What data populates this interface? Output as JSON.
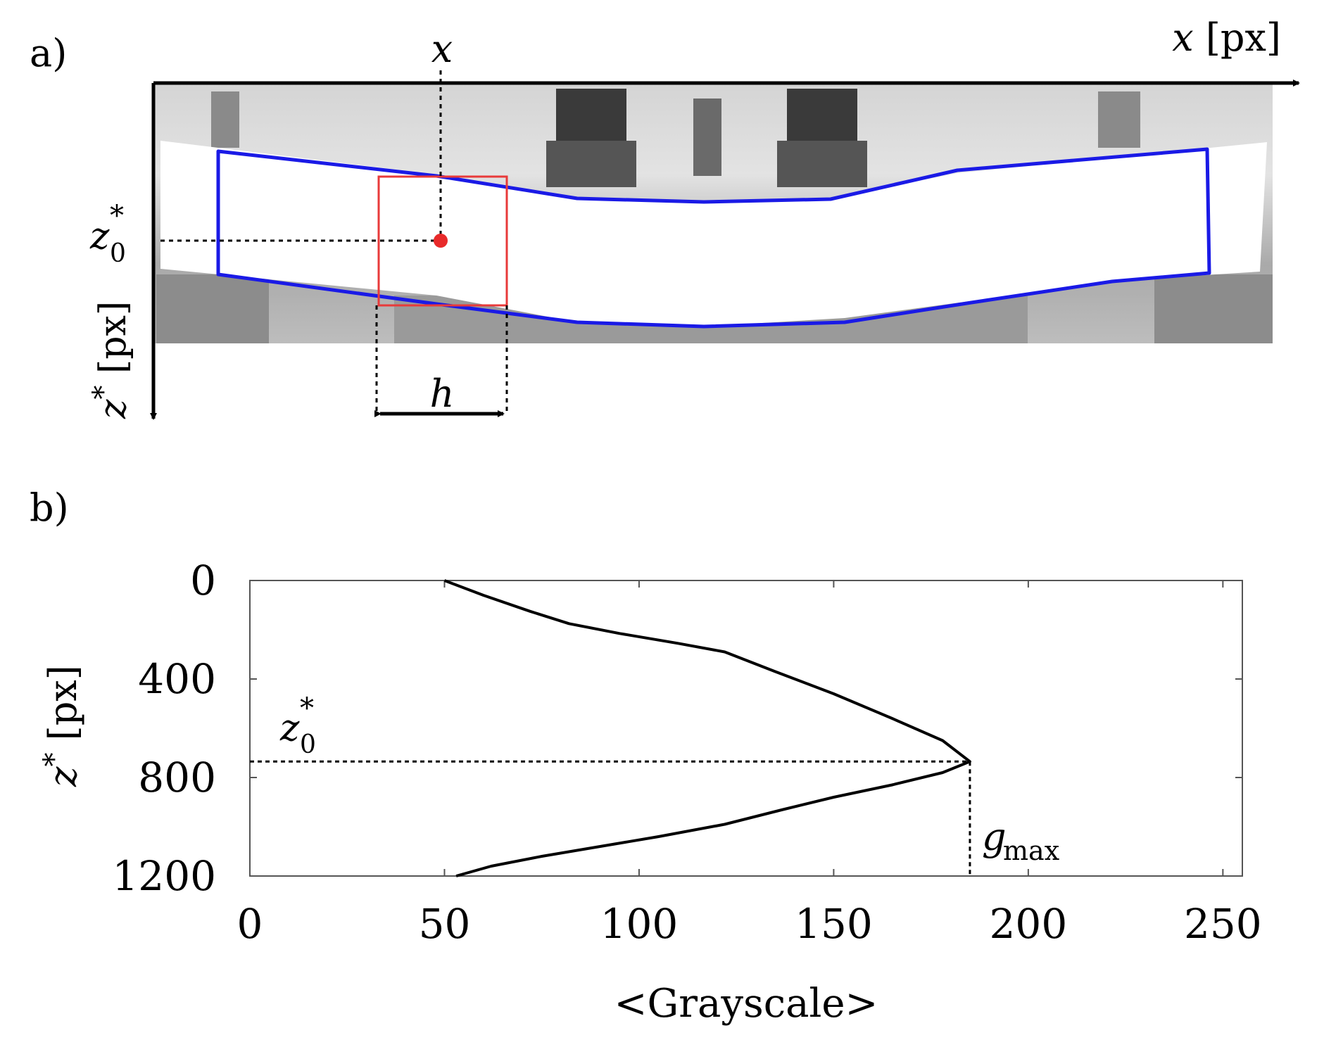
{
  "panel_a": {
    "label": "a)",
    "x_axis_label_italic": "x",
    "x_axis_label_unit": "[px]",
    "z_axis_label_base": "z",
    "z_axis_label_star": "*",
    "z_axis_label_unit": "[px]",
    "marker_x_label": "x",
    "marker_z_base": "z",
    "marker_z_sub": "0",
    "marker_z_sup": "*",
    "window_width_label": "h",
    "colors": {
      "outline": "#1a1ae6",
      "window": "#e83a3a",
      "point": "#e82a2a",
      "photo_bg": "#c8c8c8"
    }
  },
  "panel_b": {
    "label": "b)",
    "annotation_z_base": "z",
    "annotation_z_sub": "0",
    "annotation_z_sup": "*",
    "annotation_g_base": "g",
    "annotation_g_sub": "max",
    "ylabel_base": "z",
    "ylabel_sup": "*",
    "ylabel_unit": "[px]"
  },
  "chart_data": {
    "type": "line",
    "xlabel": "<Grayscale>",
    "ylabel": "z* [px]",
    "xlim": [
      0,
      255
    ],
    "ylim": [
      1200,
      0
    ],
    "y_inverted": true,
    "x_ticks": [
      0,
      50,
      100,
      150,
      200,
      250
    ],
    "y_ticks": [
      0,
      400,
      800,
      1200
    ],
    "series": [
      {
        "x": [
          50,
          60,
          72,
          82,
          95,
          110,
          122,
          135,
          150,
          165,
          178,
          185,
          178,
          165,
          150,
          137,
          122,
          105,
          90,
          75,
          62,
          53
        ],
        "y": [
          0,
          60,
          125,
          175,
          215,
          255,
          290,
          370,
          460,
          560,
          650,
          735,
          780,
          830,
          880,
          930,
          990,
          1040,
          1080,
          1120,
          1160,
          1200
        ]
      }
    ],
    "reference_lines": {
      "z0_star": 735,
      "g_max": 185
    },
    "grid": false
  }
}
